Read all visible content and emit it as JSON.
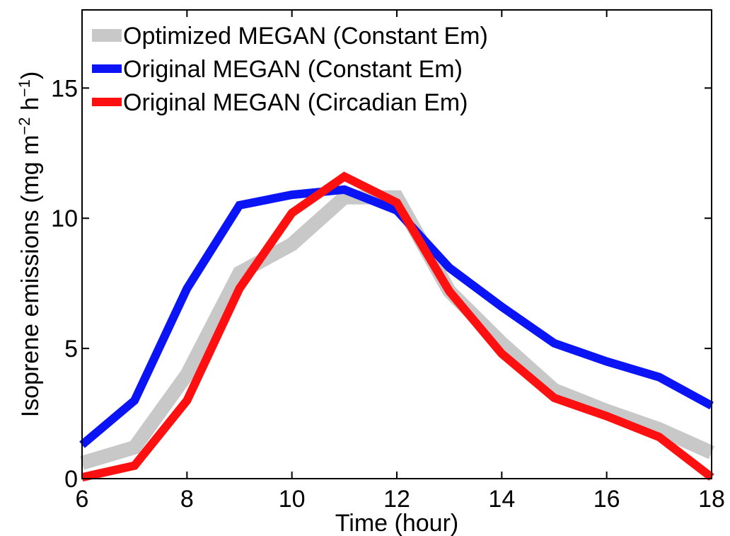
{
  "chart_data": {
    "type": "line",
    "title": "",
    "xlabel": "Time (hour)",
    "ylabel": {
      "text_main": "Isoprene emissions (mg m",
      "sup1": "−2",
      "text_mid": " h",
      "sup2": "−1",
      "text_end": ")"
    },
    "xlim": [
      6,
      18
    ],
    "ylim": [
      0,
      18
    ],
    "xticks": [
      "6",
      "8",
      "10",
      "12",
      "14",
      "16",
      "18"
    ],
    "yticks": [
      "0",
      "5",
      "10",
      "15"
    ],
    "xtick_values": [
      6,
      8,
      10,
      12,
      14,
      16,
      18
    ],
    "ytick_values": [
      0,
      5,
      10,
      15
    ],
    "grid": false,
    "legend_position": "top-left",
    "x": [
      6,
      7,
      8,
      9,
      10,
      11,
      12,
      13,
      14,
      15,
      16,
      17,
      18
    ],
    "series": [
      {
        "name": "Optimized MEGAN (Constant Em)",
        "color": "#c8c8c8",
        "values": [
          0.6,
          1.2,
          4.0,
          7.9,
          9.0,
          10.8,
          10.8,
          7.2,
          5.2,
          3.4,
          2.6,
          1.9,
          1.0
        ]
      },
      {
        "name": "Original MEGAN (Constant Em)",
        "color": "#0a14f5",
        "values": [
          1.3,
          3.0,
          7.3,
          10.5,
          10.9,
          11.1,
          10.3,
          8.1,
          6.6,
          5.2,
          4.5,
          3.9,
          2.8
        ]
      },
      {
        "name": "Original MEGAN (Circadian Em)",
        "color": "#ff1010",
        "values": [
          0.05,
          0.5,
          3.0,
          7.3,
          10.2,
          11.6,
          10.6,
          7.2,
          4.8,
          3.1,
          2.4,
          1.6,
          0.05
        ]
      }
    ]
  }
}
